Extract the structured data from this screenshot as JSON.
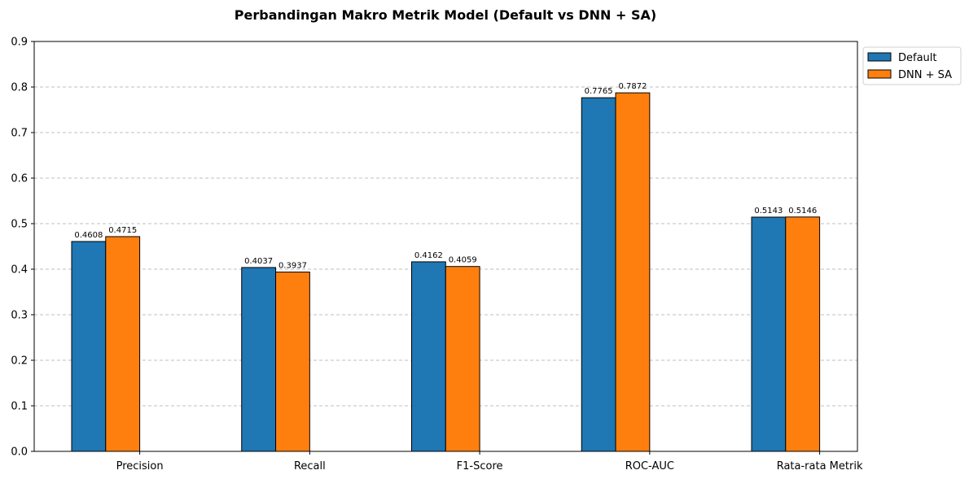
{
  "chart_data": {
    "type": "bar",
    "title": "Perbandingan Makro Metrik Model (Default vs DNN + SA)",
    "xlabel": "",
    "ylabel": "",
    "categories": [
      "Precision",
      "Recall",
      "F1-Score",
      "ROC-AUC",
      "Rata-rata Metrik"
    ],
    "series": [
      {
        "name": "Default",
        "color": "#1f77b4",
        "values": [
          0.4608,
          0.4037,
          0.4162,
          0.7765,
          0.5143
        ]
      },
      {
        "name": "DNN + SA",
        "color": "#ff7f0e",
        "values": [
          0.4715,
          0.3937,
          0.4059,
          0.7872,
          0.5146
        ]
      }
    ],
    "ylim": [
      0,
      0.9
    ],
    "yticks": [
      "0.0",
      "0.1",
      "0.2",
      "0.3",
      "0.4",
      "0.5",
      "0.6",
      "0.7",
      "0.8",
      "0.9"
    ],
    "grid": "y-dashed",
    "legend_position": "outside-top-right"
  }
}
